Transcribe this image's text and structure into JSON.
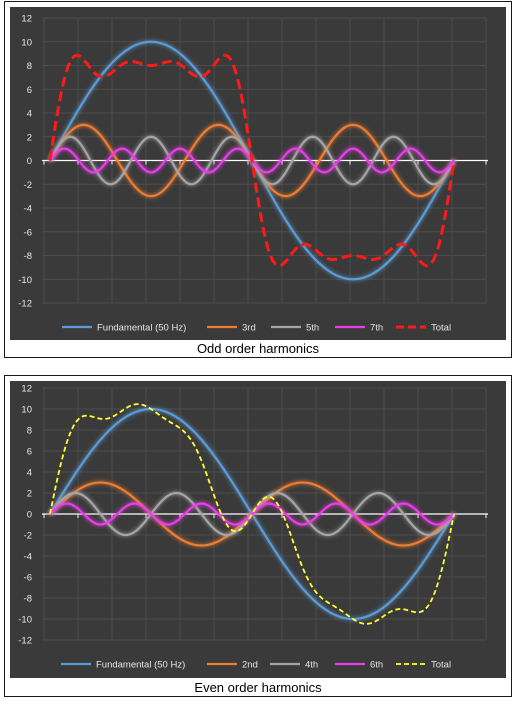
{
  "chart_data": [
    {
      "type": "line",
      "caption": "Odd order harmonics",
      "ylim": [
        -12,
        12
      ],
      "yticks": [
        12,
        10,
        8,
        6,
        4,
        2,
        0,
        -2,
        -4,
        -6,
        -8,
        -10,
        -12
      ],
      "x_period_ms": 20,
      "grid": true,
      "legend_position": "bottom",
      "series": [
        {
          "name": "Fundamental (50 Hz)",
          "harmonic": 1,
          "amplitude": 10,
          "color": "#5b9bd5",
          "style": "solid",
          "glow": true
        },
        {
          "name": "3rd",
          "harmonic": 3,
          "amplitude": 3,
          "color": "#ed7d31",
          "style": "solid",
          "glow": true
        },
        {
          "name": "5th",
          "harmonic": 5,
          "amplitude": 2,
          "color": "#a5a5a5",
          "style": "solid",
          "glow": true
        },
        {
          "name": "7th",
          "harmonic": 7,
          "amplitude": 1,
          "color": "#e83ee8",
          "style": "solid",
          "glow": true
        },
        {
          "name": "Total",
          "components": [
            [
              1,
              10
            ],
            [
              3,
              3
            ],
            [
              5,
              2
            ],
            [
              7,
              1
            ]
          ],
          "color": "#ff1a1a",
          "style": "dashed",
          "glow": false
        }
      ]
    },
    {
      "type": "line",
      "caption": "Even order harmonics",
      "ylim": [
        -12,
        12
      ],
      "yticks": [
        12,
        10,
        8,
        6,
        4,
        2,
        0,
        -2,
        -4,
        -6,
        -8,
        -10,
        -12
      ],
      "x_period_ms": 20,
      "grid": true,
      "legend_position": "bottom",
      "series": [
        {
          "name": "Fundamental (50 Hz)",
          "harmonic": 1,
          "amplitude": 10,
          "color": "#5b9bd5",
          "style": "solid",
          "glow": true
        },
        {
          "name": "2nd",
          "harmonic": 2,
          "amplitude": 3,
          "color": "#ed7d31",
          "style": "solid",
          "glow": true
        },
        {
          "name": "4th",
          "harmonic": 4,
          "amplitude": 2,
          "color": "#a5a5a5",
          "style": "solid",
          "glow": true
        },
        {
          "name": "6th",
          "harmonic": 6,
          "amplitude": 1,
          "color": "#e83ee8",
          "style": "solid",
          "glow": true
        },
        {
          "name": "Total",
          "components": [
            [
              1,
              10
            ],
            [
              2,
              3
            ],
            [
              4,
              2
            ],
            [
              6,
              1
            ]
          ],
          "color": "#ffff33",
          "style": "dashed",
          "glow": false
        }
      ]
    }
  ]
}
